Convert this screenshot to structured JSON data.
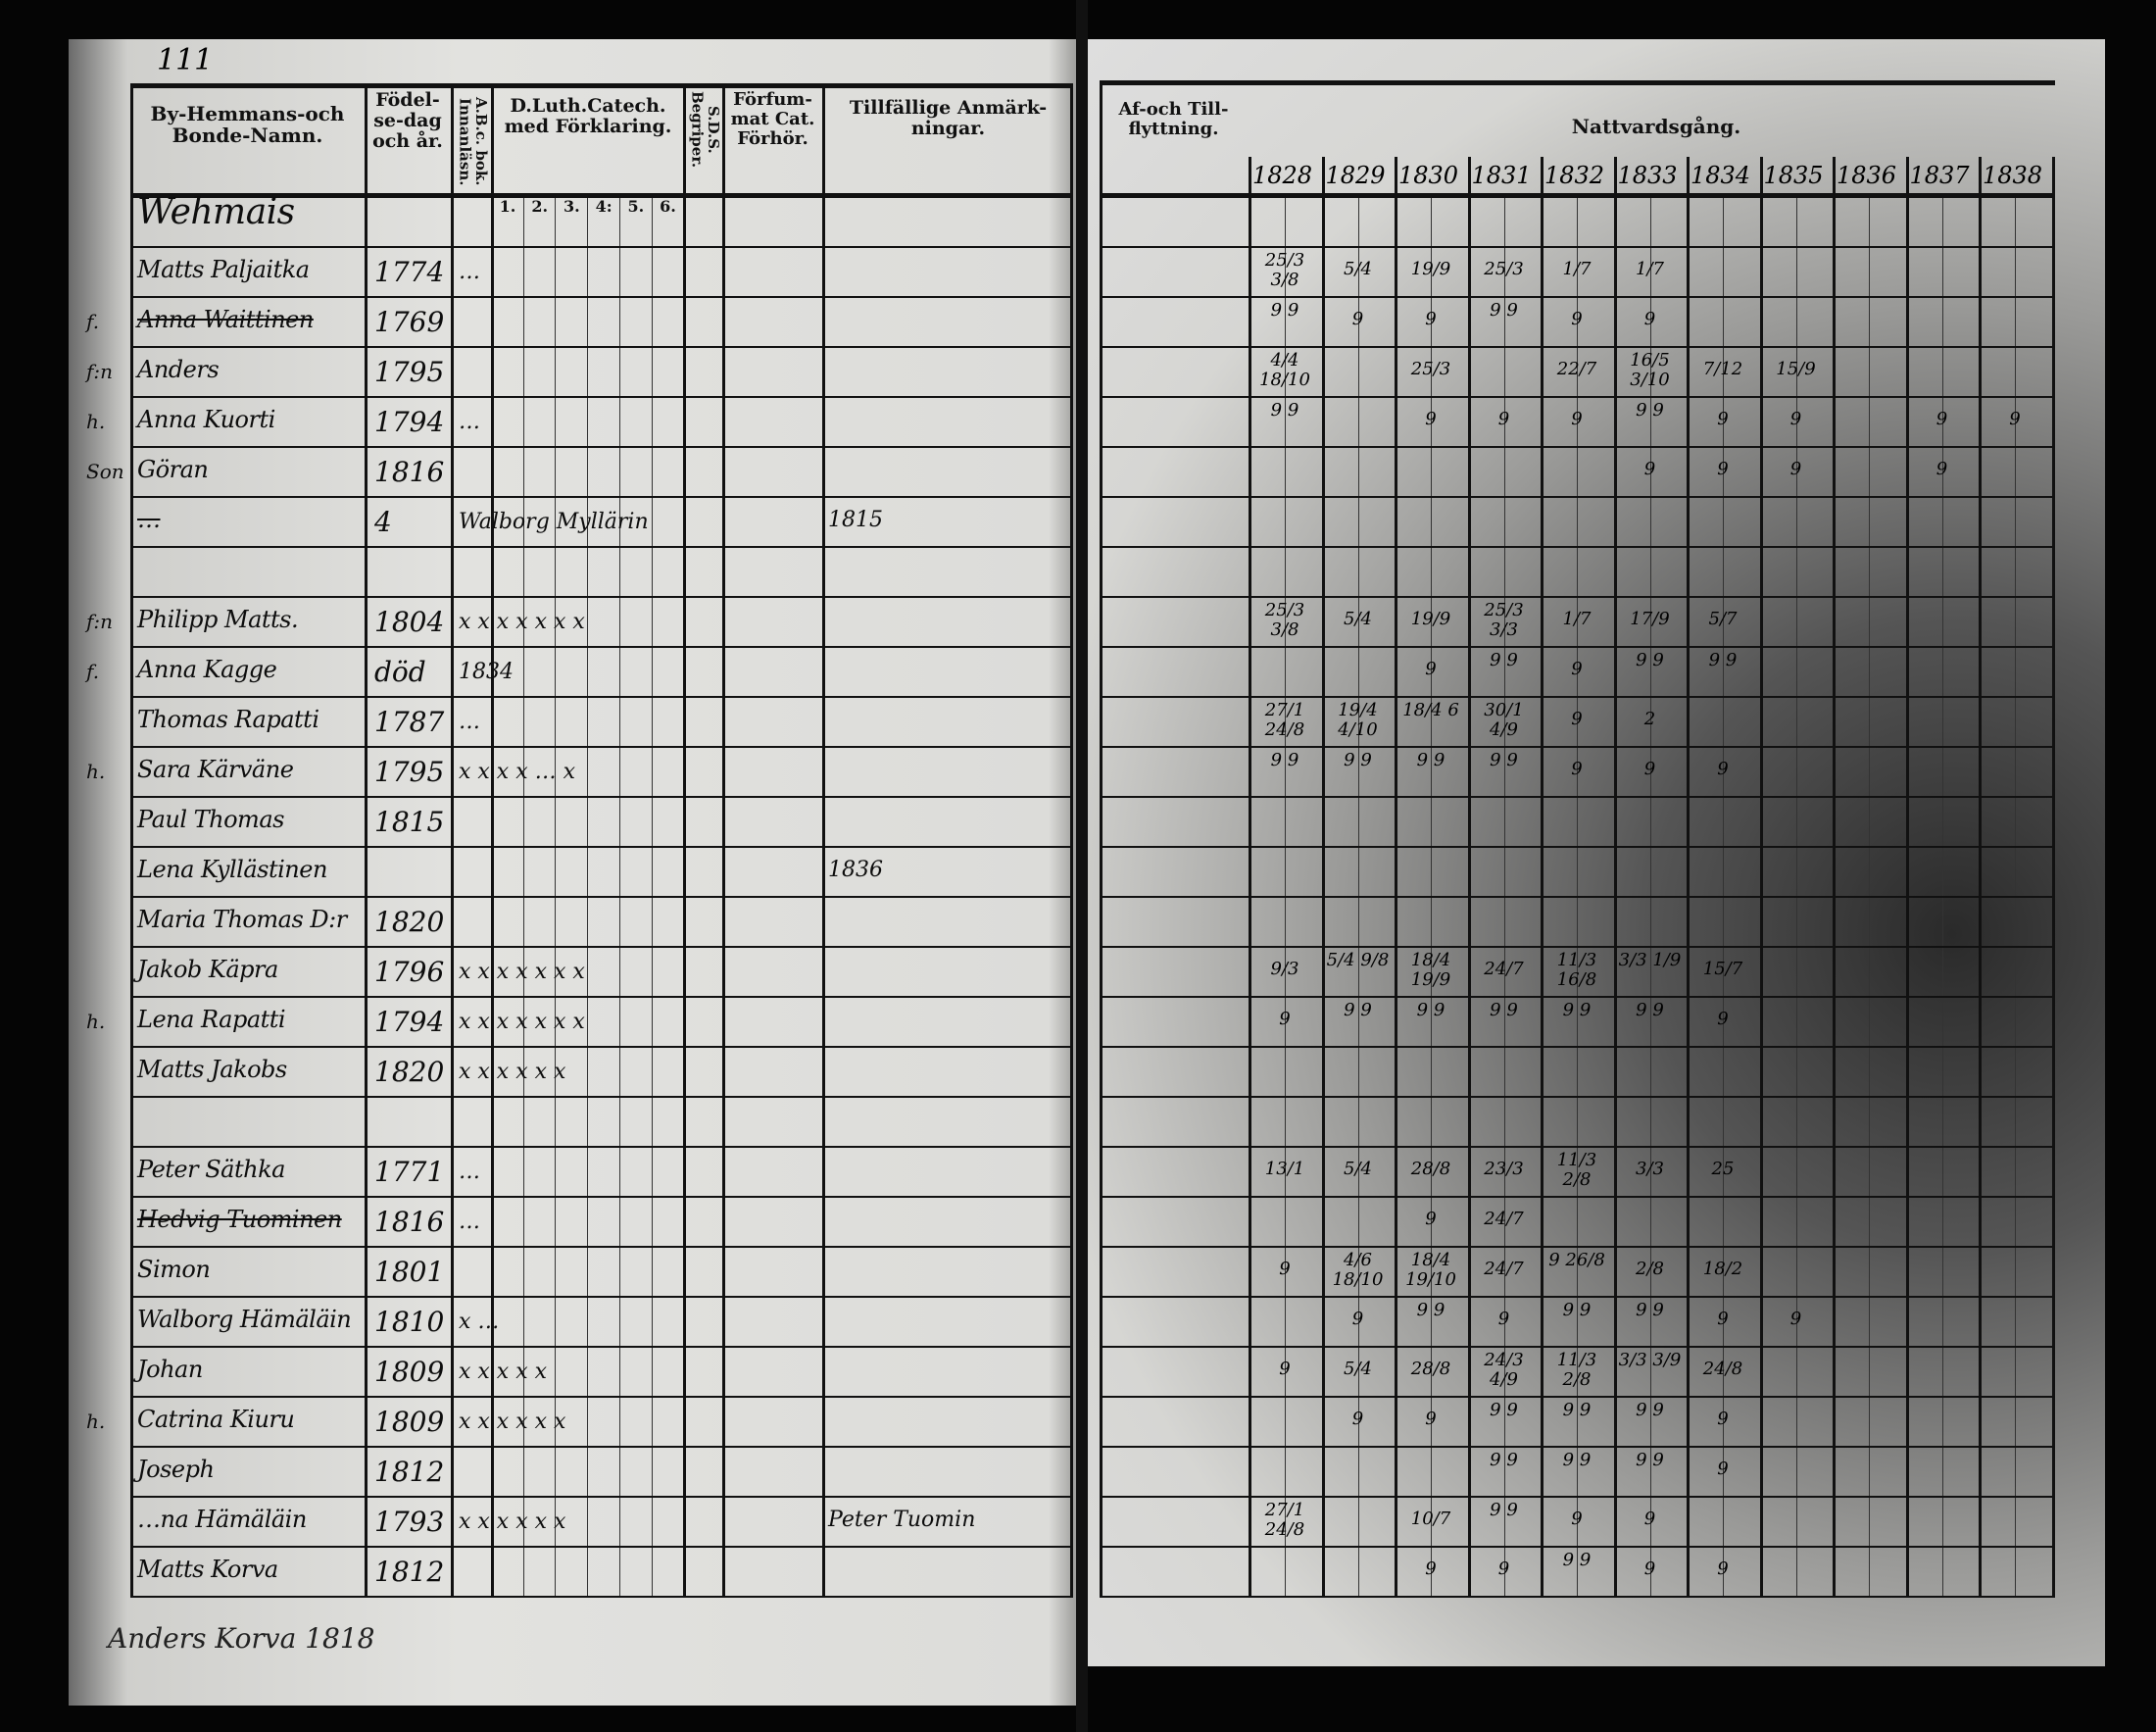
{
  "page_number": "111",
  "left_headers": {
    "name": "By-Hemmans-och Bonde-Namn.",
    "birth": "Födel-se-dag och år.",
    "abc": "A.B.c. bok. Innanläsn.",
    "catechism": "D.Luth.Catech. med Förklaring.",
    "catechism_parts": [
      "1.",
      "2.",
      "3.",
      "4:",
      "5.",
      "6."
    ],
    "sds": "S.D.S. Begriper.",
    "forsummat": "Förfum-mat Cat. Förhör.",
    "anmarkningar": "Tillfällige Anmärk-ningar."
  },
  "right_headers": {
    "flyttning": "Af-och Till-flyttning.",
    "nattvard": "Nattvardsgång.",
    "years": [
      "1828",
      "1829",
      "1830",
      "1831",
      "1832",
      "1833",
      "1834",
      "1835",
      "1836",
      "1837",
      "1838"
    ]
  },
  "rows": [
    {
      "prefix": "",
      "name": "Wehmais",
      "year": "",
      "catech": "",
      "note": "",
      "struck": false
    },
    {
      "prefix": "",
      "name": "Matts Paljaitka",
      "year": "1774",
      "catech": "…",
      "note": "",
      "struck": false
    },
    {
      "prefix": "f.",
      "name": "Anna Waittinen",
      "year": "1769",
      "catech": "",
      "note": "",
      "struck": true
    },
    {
      "prefix": "f:n",
      "name": "Anders",
      "year": "1795",
      "catech": "",
      "note": "",
      "struck": false
    },
    {
      "prefix": "h.",
      "name": "Anna Kuorti",
      "year": "1794",
      "catech": "…",
      "note": "",
      "struck": false
    },
    {
      "prefix": "Son",
      "name": "Göran",
      "year": "1816",
      "catech": "",
      "note": "",
      "struck": false
    },
    {
      "prefix": "",
      "name": "…",
      "year": "4",
      "catech": "Walborg Myllärin",
      "note": "1815",
      "struck": true
    },
    {
      "prefix": "",
      "name": "",
      "year": "",
      "catech": "",
      "note": "",
      "struck": false
    },
    {
      "prefix": "f:n",
      "name": "Philipp Matts.",
      "year": "1804",
      "catech": "x x x x x x x",
      "note": "",
      "struck": false
    },
    {
      "prefix": "f.",
      "name": "Anna Kagge",
      "year": "död",
      "catech": "1834",
      "note": "",
      "struck": false
    },
    {
      "prefix": "",
      "name": "Thomas Rapatti",
      "year": "1787",
      "catech": "…",
      "note": "",
      "struck": false
    },
    {
      "prefix": "h.",
      "name": "Sara Kärväne",
      "year": "1795",
      "catech": "x x x x … x",
      "note": "",
      "struck": false
    },
    {
      "prefix": "",
      "name": "Paul Thomas",
      "year": "1815",
      "catech": "",
      "note": "",
      "struck": false
    },
    {
      "prefix": "",
      "name": "Lena Kyllästinen",
      "year": "",
      "catech": "",
      "note": "1836",
      "struck": false
    },
    {
      "prefix": "",
      "name": "Maria Thomas D:r",
      "year": "1820",
      "catech": "",
      "note": "",
      "struck": false
    },
    {
      "prefix": "",
      "name": "Jakob Käpra",
      "year": "1796",
      "catech": "x x x x x x x",
      "note": "",
      "struck": false
    },
    {
      "prefix": "h.",
      "name": "Lena Rapatti",
      "year": "1794",
      "catech": "x x x x x x x",
      "note": "",
      "struck": false
    },
    {
      "prefix": "",
      "name": "Matts Jakobs",
      "year": "1820",
      "catech": "x x x x x x",
      "note": "",
      "struck": false
    },
    {
      "prefix": "",
      "name": "",
      "year": "",
      "catech": "",
      "note": "",
      "struck": false
    },
    {
      "prefix": "",
      "name": "Peter Säthka",
      "year": "1771",
      "catech": "…",
      "note": "",
      "struck": false
    },
    {
      "prefix": "",
      "name": "Hedvig Tuominen",
      "year": "1816",
      "catech": "…",
      "note": "",
      "struck": true
    },
    {
      "prefix": "",
      "name": "Simon",
      "year": "1801",
      "catech": "",
      "note": "",
      "struck": false
    },
    {
      "prefix": "",
      "name": "Walborg Hämäläin",
      "year": "1810",
      "catech": "x …",
      "note": "",
      "struck": false
    },
    {
      "prefix": "",
      "name": "Johan",
      "year": "1809",
      "catech": "x x x x x",
      "note": "",
      "struck": false
    },
    {
      "prefix": "h.",
      "name": "Catrina Kiuru",
      "year": "1809",
      "catech": "x x x x x x",
      "note": "",
      "struck": false
    },
    {
      "prefix": "",
      "name": "Joseph",
      "year": "1812",
      "catech": "",
      "note": "",
      "struck": false
    },
    {
      "prefix": "",
      "name": "…na Hämäläin",
      "year": "1793",
      "catech": "x x x x x x",
      "note": "Peter Tuomin",
      "struck": false
    },
    {
      "prefix": "",
      "name": "Matts Korva",
      "year": "1812",
      "catech": "",
      "note": "",
      "struck": false
    }
  ],
  "below_table": "Anders Korva 1818",
  "communion": [
    [],
    [
      "25/3 3/8",
      "5/4",
      "19/9",
      "25/3",
      "1/7",
      "1/7",
      ""
    ],
    [
      "9 9",
      "9",
      "9",
      "9 9",
      "9",
      "9"
    ],
    [
      "4/4 18/10",
      "",
      "25/3",
      "",
      "22/7",
      "16/5 3/10",
      "7/12",
      "15/9"
    ],
    [
      "9 9",
      "",
      "9",
      "9",
      "9",
      "9 9",
      "9",
      "9",
      "",
      "9",
      "9"
    ],
    [
      "",
      "",
      "",
      "",
      "",
      "9",
      "9",
      "9",
      "",
      "9"
    ],
    [],
    [],
    [
      "25/3 3/8",
      "5/4",
      "19/9",
      "25/3 3/3",
      "1/7",
      "17/9",
      "5/7"
    ],
    [
      "",
      "",
      "9",
      "9 9",
      "9",
      "9 9",
      "9 9"
    ],
    [
      "27/1 24/8",
      "19/4 4/10",
      "18/4 6",
      "30/1 4/9",
      "9",
      "2"
    ],
    [
      "9 9",
      "9 9",
      "9 9",
      "9 9",
      "9",
      "9",
      "9"
    ],
    [],
    [],
    [],
    [
      "9/3",
      "5/4 9/8",
      "18/4 19/9",
      "24/7",
      "11/3 16/8",
      "3/3 1/9",
      "15/7"
    ],
    [
      "9",
      "9 9",
      "9 9",
      "9 9",
      "9 9",
      "9 9",
      "9"
    ],
    [],
    [],
    [
      "13/1",
      "5/4",
      "28/8",
      "23/3",
      "11/3 2/8",
      "3/3",
      "25"
    ],
    [
      "",
      "",
      "9",
      "24/7"
    ],
    [
      "9",
      "4/6 18/10",
      "18/4 19/10",
      "24/7",
      "9 26/8",
      "2/8",
      "18/2"
    ],
    [
      "",
      "9",
      "9 9",
      "9",
      "9 9",
      "9 9",
      "9",
      "9"
    ],
    [
      "9",
      "5/4",
      "28/8",
      "24/3 4/9",
      "11/3 2/8",
      "3/3 3/9",
      "24/8"
    ],
    [
      "",
      "9",
      "9",
      "9 9",
      "9 9",
      "9 9",
      "9"
    ],
    [
      "",
      "",
      "",
      "9 9",
      "9 9",
      "9 9",
      "9"
    ],
    [
      "27/1 24/8",
      "",
      "10/7",
      "9 9",
      "9",
      "9"
    ],
    [
      "",
      "",
      "9",
      "9",
      "9 9",
      "9",
      "9"
    ]
  ],
  "colors": {
    "ink": "#111111",
    "paper": "#d9d9d6",
    "frame": "#050505"
  }
}
